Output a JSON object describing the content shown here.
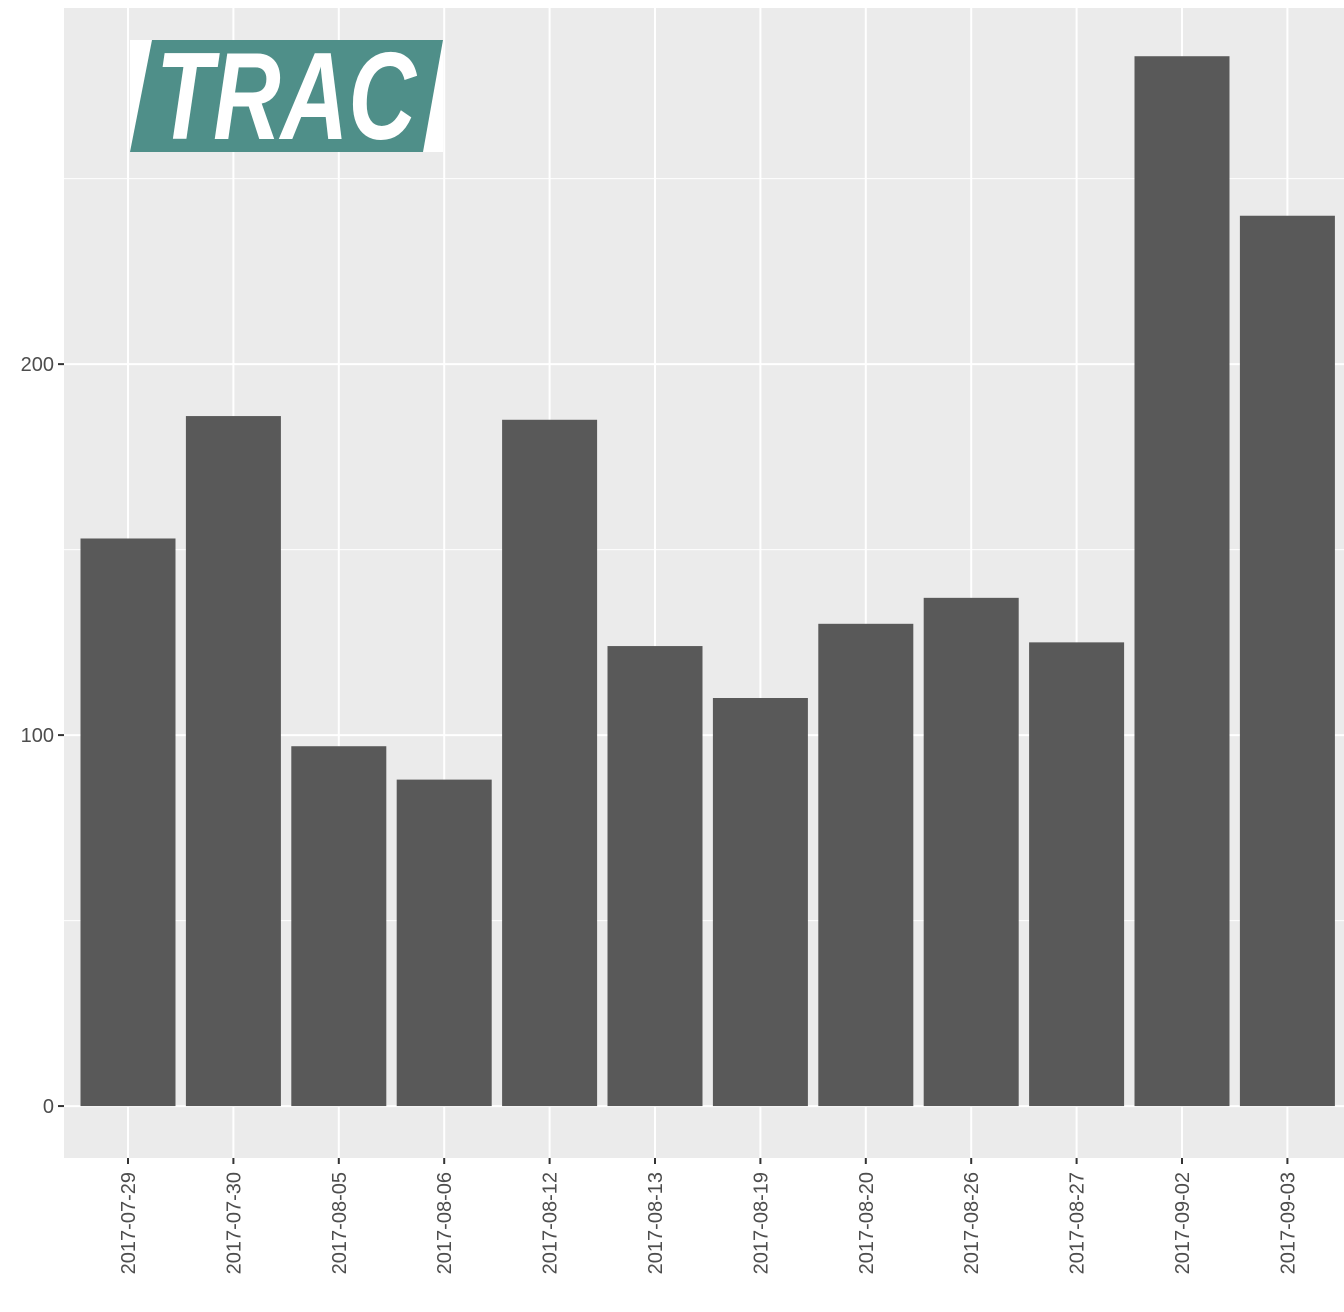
{
  "chart_data": {
    "type": "bar",
    "title": "",
    "xlabel": "",
    "ylabel": "",
    "categories": [
      "2017-07-29",
      "2017-07-30",
      "2017-08-05",
      "2017-08-06",
      "2017-08-12",
      "2017-08-13",
      "2017-08-19",
      "2017-08-20",
      "2017-08-26",
      "2017-08-27",
      "2017-09-02",
      "2017-09-03"
    ],
    "values": [
      153,
      186,
      97,
      88,
      185,
      124,
      110,
      130,
      137,
      125,
      283,
      240
    ],
    "ylim": [
      -14,
      296
    ],
    "yticks": [
      0,
      100,
      200
    ],
    "y_minor_gridlines": [
      50,
      150,
      250
    ],
    "grid": true,
    "legend": "none",
    "colors": {
      "panel": "#ebebeb",
      "grid": "#ffffff",
      "bar": "#595959",
      "tick_text": "#4d4d4d",
      "tick_mark": "#333333"
    }
  },
  "logo": {
    "text": "TRAC",
    "color": "#4f8f89"
  }
}
